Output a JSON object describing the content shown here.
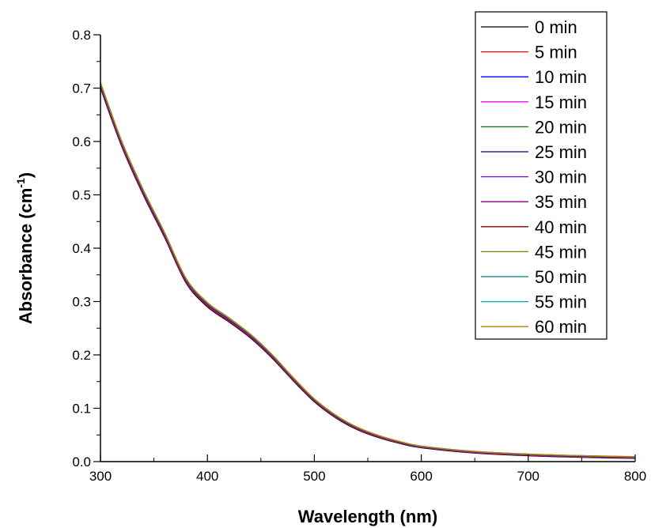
{
  "chart_data": {
    "type": "line",
    "title": "",
    "xlabel": "Wavelength (nm)",
    "ylabel": {
      "main": "Absorbance (cm",
      "superscript": "-1",
      "close": ")"
    },
    "xlim": [
      300,
      800
    ],
    "ylim": [
      0,
      0.8
    ],
    "x_ticks": [
      "300",
      "400",
      "500",
      "600",
      "700",
      "800"
    ],
    "y_ticks": [
      "0.0",
      "0.1",
      "0.2",
      "0.3",
      "0.4",
      "0.5",
      "0.6",
      "0.7",
      "0.8"
    ],
    "grid": false,
    "legend_position": "top-right",
    "base_curve": {
      "x": [
        300,
        320,
        340,
        360,
        380,
        400,
        420,
        440,
        460,
        480,
        500,
        520,
        540,
        560,
        580,
        600,
        650,
        700,
        750,
        800
      ],
      "y": [
        0.7,
        0.59,
        0.5,
        0.42,
        0.335,
        0.29,
        0.262,
        0.232,
        0.195,
        0.152,
        0.112,
        0.082,
        0.06,
        0.045,
        0.034,
        0.026,
        0.016,
        0.011,
        0.008,
        0.006
      ]
    },
    "series": [
      {
        "name": "0 min",
        "color": "#000000",
        "offset": 0.0
      },
      {
        "name": "5 min",
        "color": "#ff0000",
        "offset": 0.002
      },
      {
        "name": "10 min",
        "color": "#0000ff",
        "offset": 0.004
      },
      {
        "name": "15 min",
        "color": "#ff00ff",
        "offset": 0.005
      },
      {
        "name": "20 min",
        "color": "#008000",
        "offset": 0.006
      },
      {
        "name": "25 min",
        "color": "#000080",
        "offset": 0.007
      },
      {
        "name": "30 min",
        "color": "#8000ff",
        "offset": 0.008
      },
      {
        "name": "35 min",
        "color": "#800080",
        "offset": 0.008
      },
      {
        "name": "40 min",
        "color": "#800000",
        "offset": 0.009
      },
      {
        "name": "45 min",
        "color": "#808000",
        "offset": 0.009
      },
      {
        "name": "50 min",
        "color": "#008080",
        "offset": 0.01
      },
      {
        "name": "55 min",
        "color": "#00aaaa",
        "offset": 0.01
      },
      {
        "name": "60 min",
        "color": "#c08000",
        "offset": 0.011
      }
    ]
  }
}
